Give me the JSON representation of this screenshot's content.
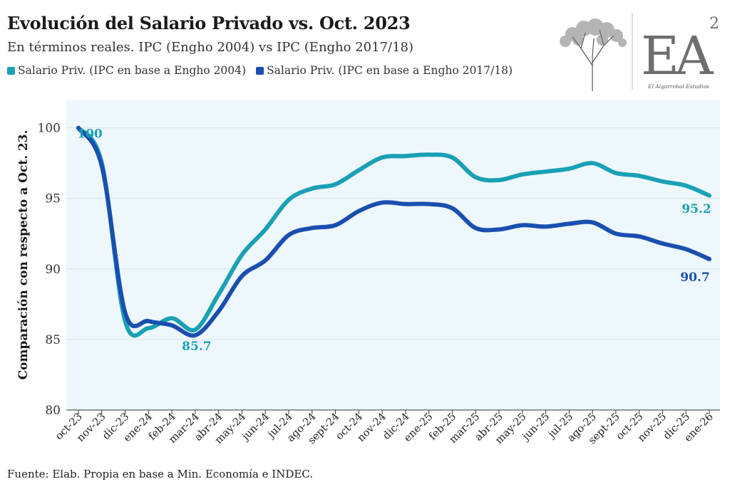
{
  "header": {
    "title": "Evolución del Salario Privado vs. Oct. 2023",
    "subtitle": "En términos reales. IPC (Engho 2004) vs IPC (Engho 2017/18)"
  },
  "logo": {
    "mark": "EA",
    "superscript": "2",
    "caption": "El Algarrobal Estudios",
    "icon": "tree-icon"
  },
  "footer": {
    "source": "Fuente: Elab. Propia en base a Min. Economía e INDEC."
  },
  "chart_data": {
    "type": "line",
    "title": "Evolución del Salario Privado vs. Oct. 2023",
    "subtitle": "En términos reales. IPC (Engho 2004) vs IPC (Engho 2017/18)",
    "ylabel": "Comparación con respecto a Oct. 23.",
    "xlabel": "",
    "ylim": [
      80,
      102
    ],
    "yticks": [
      80,
      85,
      90,
      95,
      100
    ],
    "grid": true,
    "legend_position": "top-left",
    "background": "#eef8fc",
    "categories": [
      "oct-23",
      "nov-23",
      "dic-23",
      "ene-24",
      "feb-24",
      "mar-24",
      "abr-24",
      "may-24",
      "jun-24",
      "jul-24",
      "ago-24",
      "sept-24",
      "oct-24",
      "nov-24",
      "dic-24",
      "ene-25",
      "feb-25",
      "mar-25",
      "abr-25",
      "may-25",
      "jun-25",
      "jul-25",
      "ago-25",
      "sept-25",
      "oct-25",
      "nov-25",
      "dic-25",
      "ene-26"
    ],
    "series": [
      {
        "name": "Salario Priv. (IPC en base a Engho 2004)",
        "color": "#1aa0b5",
        "values": [
          100,
          97.5,
          86.3,
          85.8,
          86.5,
          85.7,
          88.2,
          91.0,
          92.8,
          94.9,
          95.7,
          96.0,
          97.0,
          97.9,
          98.0,
          98.1,
          97.9,
          96.5,
          96.3,
          96.7,
          96.9,
          97.1,
          97.5,
          96.8,
          96.6,
          96.2,
          95.9,
          95.2
        ],
        "labels": [
          {
            "index": 0,
            "text": "100"
          },
          {
            "index": 5,
            "text": "85.7"
          },
          {
            "index": 27,
            "text": "95.2"
          }
        ]
      },
      {
        "name": "Salario Priv. (IPC en base a Engho 2017/18)",
        "color": "#1a4fb0",
        "values": [
          100,
          97.3,
          86.9,
          86.3,
          86.0,
          85.3,
          87.0,
          89.5,
          90.6,
          92.4,
          92.9,
          93.1,
          94.1,
          94.7,
          94.6,
          94.6,
          94.3,
          92.9,
          92.8,
          93.1,
          93.0,
          93.2,
          93.3,
          92.5,
          92.3,
          91.8,
          91.4,
          90.7
        ],
        "labels": [
          {
            "index": 27,
            "text": "90.7"
          }
        ]
      }
    ]
  }
}
